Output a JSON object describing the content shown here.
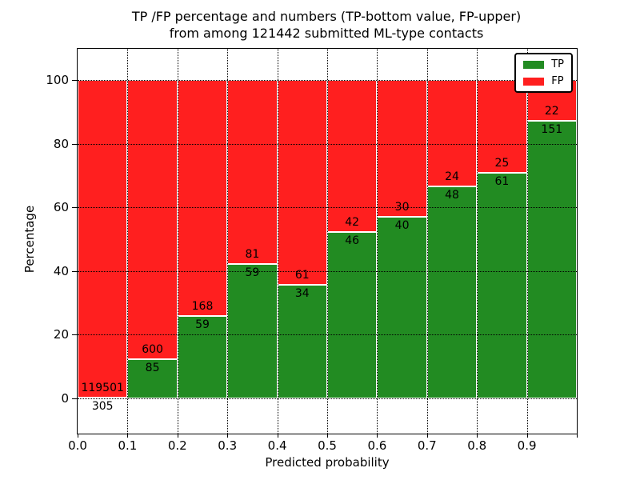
{
  "title": {
    "line1": "TP /FP percentage and numbers (TP-bottom value, FP-upper)",
    "line2": "from among 121442 submitted ML-type contacts"
  },
  "chart_data": {
    "type": "bar",
    "stacked": true,
    "normalized_to_percent": true,
    "title": "TP /FP percentage and numbers (TP-bottom value, FP-upper)\nfrom among 121442 submitted ML-type contacts",
    "xlabel": "Predicted probability",
    "ylabel": "Percentage",
    "x_bin_width": 0.1,
    "x_tick_labels": [
      "0.0",
      "0.1",
      "0.2",
      "0.3",
      "0.4",
      "0.5",
      "0.6",
      "0.7",
      "0.8",
      "0.9"
    ],
    "y_ticks": [
      0,
      20,
      40,
      60,
      80,
      100
    ],
    "ylim": [
      -11,
      110
    ],
    "grid": "dotted",
    "legend_position": "upper right",
    "series": [
      {
        "name": "TP",
        "color": "#228b22",
        "counts": [
          305,
          85,
          59,
          59,
          34,
          46,
          40,
          48,
          61,
          151
        ]
      },
      {
        "name": "FP",
        "color": "#ff1f1f",
        "counts": [
          119501,
          600,
          168,
          81,
          61,
          42,
          30,
          24,
          25,
          22
        ]
      }
    ],
    "tp_percent": [
      0.25,
      12.41,
      25.99,
      42.14,
      35.79,
      52.27,
      57.14,
      66.67,
      70.93,
      87.28
    ],
    "total_contacts": 121442
  }
}
